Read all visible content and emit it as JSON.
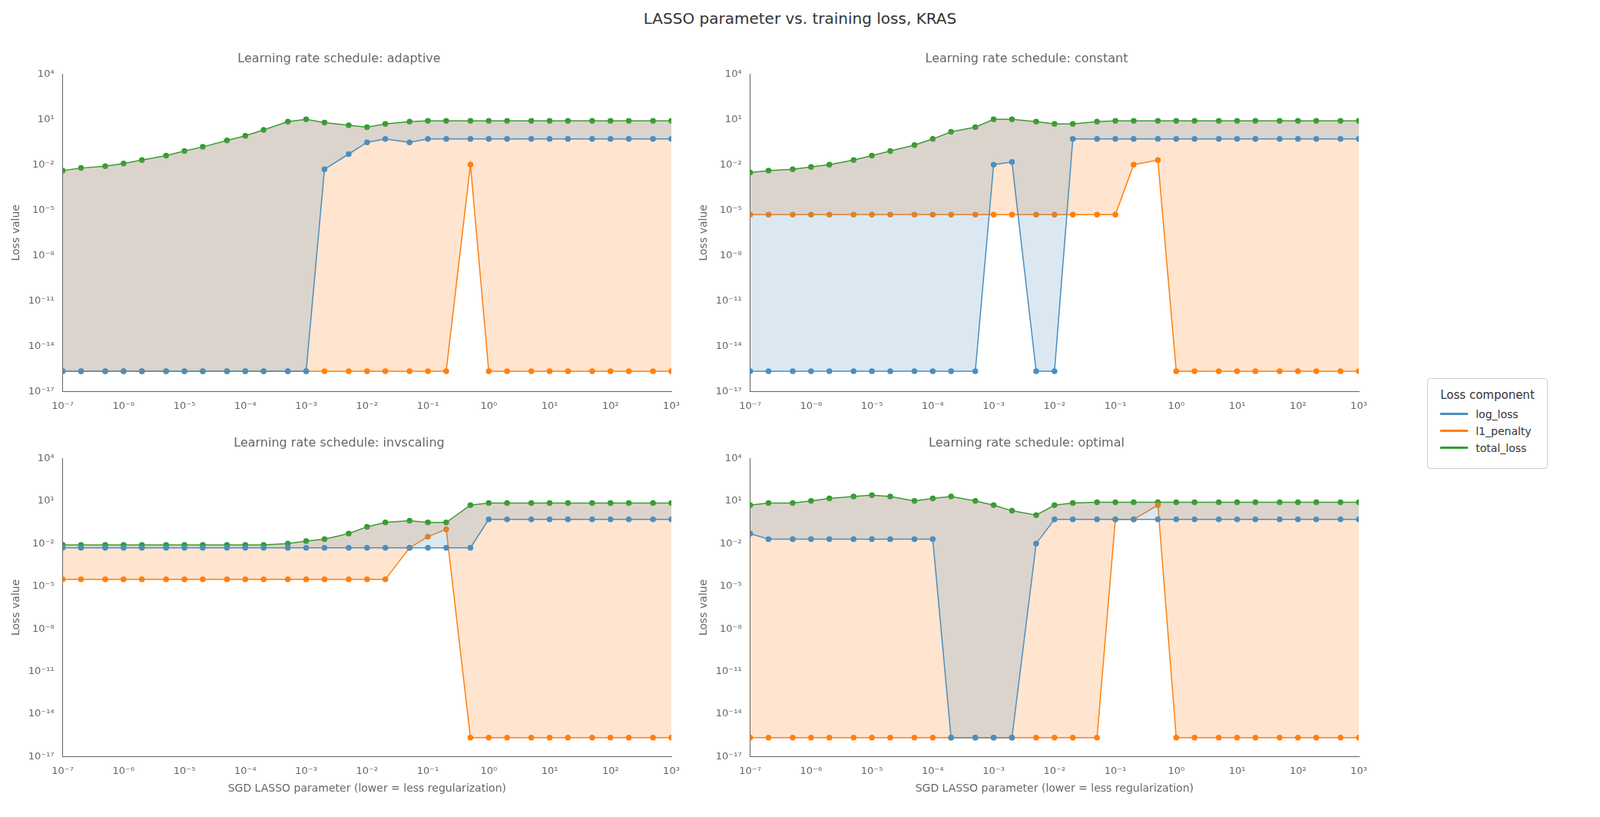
{
  "title": "LASSO parameter vs. training loss, KRAS",
  "legend_title": "Loss component",
  "legend": "right",
  "chart_data": [
    {
      "type": "line",
      "title": "Learning rate schedule: adaptive",
      "ylabel": "Loss value",
      "x": [
        1e-07,
        2e-07,
        5e-07,
        1e-06,
        2e-06,
        5e-06,
        1e-05,
        2e-05,
        5e-05,
        0.0001,
        0.0002,
        0.0005,
        0.001,
        0.002,
        0.005,
        0.01,
        0.02,
        0.05,
        0.1,
        0.2,
        0.5,
        1,
        2,
        5,
        10,
        20,
        50,
        100,
        200,
        500,
        1000
      ],
      "series": [
        {
          "name": "log_loss",
          "color": "#4C8EBF",
          "marker": "o",
          "line_style": "solid",
          "values": [
            2.22e-16,
            2.22e-16,
            2.22e-16,
            2.22e-16,
            2.22e-16,
            2.22e-16,
            2.22e-16,
            2.22e-16,
            2.22e-16,
            2.22e-16,
            2.22e-16,
            2.22e-16,
            2.22e-16,
            0.005,
            0.05,
            0.3,
            0.5,
            0.3,
            0.5,
            0.5,
            0.5,
            0.5,
            0.5,
            0.5,
            0.5,
            0.5,
            0.5,
            0.5,
            0.5,
            0.5,
            0.5
          ]
        },
        {
          "name": "l1_penalty",
          "color": "#FF7F0E",
          "marker": "o",
          "line_style": "solid",
          "values": [
            2.22e-16,
            2.22e-16,
            2.22e-16,
            2.22e-16,
            2.22e-16,
            2.22e-16,
            2.22e-16,
            2.22e-16,
            2.22e-16,
            2.22e-16,
            2.22e-16,
            2.22e-16,
            2.22e-16,
            2.22e-16,
            2.22e-16,
            2.22e-16,
            2.22e-16,
            2.22e-16,
            2.22e-16,
            2.22e-16,
            0.01,
            2.22e-16,
            2.22e-16,
            2.22e-16,
            2.22e-16,
            2.22e-16,
            2.22e-16,
            2.22e-16,
            2.22e-16,
            2.22e-16,
            2.22e-16
          ]
        },
        {
          "name": "total_loss",
          "color": "#2CA02C",
          "marker": "o",
          "line_style": "solid",
          "values": [
            0.004,
            0.006,
            0.008,
            0.012,
            0.02,
            0.04,
            0.08,
            0.15,
            0.4,
            0.8,
            2,
            7,
            10,
            6,
            4,
            3,
            5,
            7,
            8,
            8,
            8,
            8,
            8,
            8,
            8,
            8,
            8,
            8,
            8,
            8,
            8
          ]
        }
      ],
      "xlim": [
        1e-07,
        1000
      ],
      "ylim": [
        1e-17,
        10000
      ],
      "xticks": [
        {
          "value": 1e-07,
          "label": "10⁻⁷"
        },
        {
          "value": 1e-06,
          "label": "10⁻⁶"
        },
        {
          "value": 1e-05,
          "label": "10⁻⁵"
        },
        {
          "value": 0.0001,
          "label": "10⁻⁴"
        },
        {
          "value": 0.001,
          "label": "10⁻³"
        },
        {
          "value": 0.01,
          "label": "10⁻²"
        },
        {
          "value": 0.1,
          "label": "10⁻¹"
        },
        {
          "value": 1,
          "label": "10⁰"
        },
        {
          "value": 10,
          "label": "10¹"
        },
        {
          "value": 100,
          "label": "10²"
        },
        {
          "value": 1000,
          "label": "10³"
        }
      ],
      "yticks": [
        {
          "value": 1e-17,
          "label": "10⁻¹⁷"
        },
        {
          "value": 1e-14,
          "label": "10⁻¹⁴"
        },
        {
          "value": 1e-11,
          "label": "10⁻¹¹"
        },
        {
          "value": 1e-08,
          "label": "10⁻⁸"
        },
        {
          "value": 1e-05,
          "label": "10⁻⁵"
        },
        {
          "value": 0.01,
          "label": "10⁻²"
        },
        {
          "value": 10,
          "label": "10¹"
        },
        {
          "value": 10000,
          "label": "10⁴"
        }
      ],
      "log": true,
      "grid": false
    },
    {
      "type": "line",
      "title": "Learning rate schedule: constant",
      "ylabel": "Loss value",
      "x": [
        1e-07,
        2e-07,
        5e-07,
        1e-06,
        2e-06,
        5e-06,
        1e-05,
        2e-05,
        5e-05,
        0.0001,
        0.0002,
        0.0005,
        0.001,
        0.002,
        0.005,
        0.01,
        0.02,
        0.05,
        0.1,
        0.2,
        0.5,
        1,
        2,
        5,
        10,
        20,
        50,
        100,
        200,
        500,
        1000
      ],
      "series": [
        {
          "name": "log_loss",
          "color": "#4C8EBF",
          "marker": "o",
          "line_style": "solid",
          "values": [
            2.22e-16,
            2.22e-16,
            2.22e-16,
            2.22e-16,
            2.22e-16,
            2.22e-16,
            2.22e-16,
            2.22e-16,
            2.22e-16,
            2.22e-16,
            2.22e-16,
            2.22e-16,
            0.01,
            0.015,
            2.22e-16,
            2.22e-16,
            0.5,
            0.5,
            0.5,
            0.5,
            0.5,
            0.5,
            0.5,
            0.5,
            0.5,
            0.5,
            0.5,
            0.5,
            0.5,
            0.5,
            0.5
          ]
        },
        {
          "name": "l1_penalty",
          "color": "#FF7F0E",
          "marker": "o",
          "line_style": "solid",
          "values": [
            5e-06,
            5e-06,
            5e-06,
            5e-06,
            5e-06,
            5e-06,
            5e-06,
            5e-06,
            5e-06,
            5e-06,
            5e-06,
            5e-06,
            5e-06,
            5e-06,
            5e-06,
            5e-06,
            5e-06,
            5e-06,
            5e-06,
            0.01,
            0.02,
            2.22e-16,
            2.22e-16,
            2.22e-16,
            2.22e-16,
            2.22e-16,
            2.22e-16,
            2.22e-16,
            2.22e-16,
            2.22e-16,
            2.22e-16
          ]
        },
        {
          "name": "total_loss",
          "color": "#2CA02C",
          "marker": "o",
          "line_style": "solid",
          "values": [
            0.003,
            0.004,
            0.005,
            0.007,
            0.01,
            0.02,
            0.04,
            0.08,
            0.2,
            0.5,
            1.5,
            3,
            10,
            10,
            7,
            5,
            5,
            7,
            8,
            8,
            8,
            8,
            8,
            8,
            8,
            8,
            8,
            8,
            8,
            8,
            8
          ]
        }
      ],
      "xlim": [
        1e-07,
        1000
      ],
      "ylim": [
        1e-17,
        10000
      ],
      "xticks": [
        {
          "value": 1e-07,
          "label": "10⁻⁷"
        },
        {
          "value": 1e-06,
          "label": "10⁻⁶"
        },
        {
          "value": 1e-05,
          "label": "10⁻⁵"
        },
        {
          "value": 0.0001,
          "label": "10⁻⁴"
        },
        {
          "value": 0.001,
          "label": "10⁻³"
        },
        {
          "value": 0.01,
          "label": "10⁻²"
        },
        {
          "value": 0.1,
          "label": "10⁻¹"
        },
        {
          "value": 1,
          "label": "10⁰"
        },
        {
          "value": 10,
          "label": "10¹"
        },
        {
          "value": 100,
          "label": "10²"
        },
        {
          "value": 1000,
          "label": "10³"
        }
      ],
      "yticks": [
        {
          "value": 1e-17,
          "label": "10⁻¹⁷"
        },
        {
          "value": 1e-14,
          "label": "10⁻¹⁴"
        },
        {
          "value": 1e-11,
          "label": "10⁻¹¹"
        },
        {
          "value": 1e-08,
          "label": "10⁻⁸"
        },
        {
          "value": 1e-05,
          "label": "10⁻⁵"
        },
        {
          "value": 0.01,
          "label": "10⁻²"
        },
        {
          "value": 10,
          "label": "10¹"
        },
        {
          "value": 10000,
          "label": "10⁴"
        }
      ],
      "log": true,
      "grid": false
    },
    {
      "type": "line",
      "title": "Learning rate schedule: invscaling",
      "ylabel": "Loss value",
      "xlabel": "SGD LASSO parameter (lower = less regularization)",
      "x": [
        1e-07,
        2e-07,
        5e-07,
        1e-06,
        2e-06,
        5e-06,
        1e-05,
        2e-05,
        5e-05,
        0.0001,
        0.0002,
        0.0005,
        0.001,
        0.002,
        0.005,
        0.01,
        0.02,
        0.05,
        0.1,
        0.2,
        0.5,
        1,
        2,
        5,
        10,
        20,
        50,
        100,
        200,
        500,
        1000
      ],
      "series": [
        {
          "name": "log_loss",
          "color": "#4C8EBF",
          "marker": "o",
          "line_style": "solid",
          "values": [
            0.005,
            0.005,
            0.005,
            0.005,
            0.005,
            0.005,
            0.005,
            0.005,
            0.005,
            0.005,
            0.005,
            0.005,
            0.005,
            0.005,
            0.005,
            0.005,
            0.005,
            0.005,
            0.005,
            0.005,
            0.005,
            0.5,
            0.5,
            0.5,
            0.5,
            0.5,
            0.5,
            0.5,
            0.5,
            0.5,
            0.5
          ]
        },
        {
          "name": "l1_penalty",
          "color": "#FF7F0E",
          "marker": "o",
          "line_style": "solid",
          "values": [
            3e-05,
            3e-05,
            3e-05,
            3e-05,
            3e-05,
            3e-05,
            3e-05,
            3e-05,
            3e-05,
            3e-05,
            3e-05,
            3e-05,
            3e-05,
            3e-05,
            3e-05,
            3e-05,
            3e-05,
            0.005,
            0.03,
            0.1,
            2.22e-16,
            2.22e-16,
            2.22e-16,
            2.22e-16,
            2.22e-16,
            2.22e-16,
            2.22e-16,
            2.22e-16,
            2.22e-16,
            2.22e-16,
            2.22e-16
          ]
        },
        {
          "name": "total_loss",
          "color": "#2CA02C",
          "marker": "o",
          "line_style": "solid",
          "values": [
            0.008,
            0.008,
            0.008,
            0.008,
            0.008,
            0.008,
            0.008,
            0.008,
            0.008,
            0.008,
            0.008,
            0.01,
            0.015,
            0.02,
            0.05,
            0.15,
            0.3,
            0.4,
            0.3,
            0.3,
            5,
            7,
            7,
            7,
            7,
            7,
            7,
            7,
            7,
            7,
            7
          ]
        }
      ],
      "xlim": [
        1e-07,
        1000
      ],
      "ylim": [
        1e-17,
        10000
      ],
      "xticks": [
        {
          "value": 1e-07,
          "label": "10⁻⁷"
        },
        {
          "value": 1e-06,
          "label": "10⁻⁶"
        },
        {
          "value": 1e-05,
          "label": "10⁻⁵"
        },
        {
          "value": 0.0001,
          "label": "10⁻⁴"
        },
        {
          "value": 0.001,
          "label": "10⁻³"
        },
        {
          "value": 0.01,
          "label": "10⁻²"
        },
        {
          "value": 0.1,
          "label": "10⁻¹"
        },
        {
          "value": 1,
          "label": "10⁰"
        },
        {
          "value": 10,
          "label": "10¹"
        },
        {
          "value": 100,
          "label": "10²"
        },
        {
          "value": 1000,
          "label": "10³"
        }
      ],
      "yticks": [
        {
          "value": 1e-17,
          "label": "10⁻¹⁷"
        },
        {
          "value": 1e-14,
          "label": "10⁻¹⁴"
        },
        {
          "value": 1e-11,
          "label": "10⁻¹¹"
        },
        {
          "value": 1e-08,
          "label": "10⁻⁸"
        },
        {
          "value": 1e-05,
          "label": "10⁻⁵"
        },
        {
          "value": 0.01,
          "label": "10⁻²"
        },
        {
          "value": 10,
          "label": "10¹"
        },
        {
          "value": 10000,
          "label": "10⁴"
        }
      ],
      "log": true,
      "grid": false
    },
    {
      "type": "line",
      "title": "Learning rate schedule: optimal",
      "ylabel": "Loss value",
      "xlabel": "SGD LASSO parameter (lower = less regularization)",
      "x": [
        1e-07,
        2e-07,
        5e-07,
        1e-06,
        2e-06,
        5e-06,
        1e-05,
        2e-05,
        5e-05,
        0.0001,
        0.0002,
        0.0005,
        0.001,
        0.002,
        0.005,
        0.01,
        0.02,
        0.05,
        0.1,
        0.2,
        0.5,
        1,
        2,
        5,
        10,
        20,
        50,
        100,
        200,
        500,
        1000
      ],
      "series": [
        {
          "name": "log_loss",
          "color": "#4C8EBF",
          "marker": "o",
          "line_style": "solid",
          "values": [
            0.05,
            0.02,
            0.02,
            0.02,
            0.02,
            0.02,
            0.02,
            0.02,
            0.02,
            0.02,
            2.22e-16,
            2.22e-16,
            2.22e-16,
            2.22e-16,
            0.01,
            0.5,
            0.5,
            0.5,
            0.5,
            0.5,
            0.5,
            0.5,
            0.5,
            0.5,
            0.5,
            0.5,
            0.5,
            0.5,
            0.5,
            0.5,
            0.5
          ]
        },
        {
          "name": "l1_penalty",
          "color": "#FF7F0E",
          "marker": "o",
          "line_style": "solid",
          "values": [
            2.22e-16,
            2.22e-16,
            2.22e-16,
            2.22e-16,
            2.22e-16,
            2.22e-16,
            2.22e-16,
            2.22e-16,
            2.22e-16,
            2.22e-16,
            2.22e-16,
            2.22e-16,
            2.22e-16,
            2.22e-16,
            2.22e-16,
            2.22e-16,
            2.22e-16,
            2.22e-16,
            0.5,
            0.5,
            5,
            2.22e-16,
            2.22e-16,
            2.22e-16,
            2.22e-16,
            2.22e-16,
            2.22e-16,
            2.22e-16,
            2.22e-16,
            2.22e-16,
            2.22e-16
          ]
        },
        {
          "name": "total_loss",
          "color": "#2CA02C",
          "marker": "o",
          "line_style": "solid",
          "values": [
            5,
            7,
            7,
            10,
            15,
            20,
            25,
            20,
            10,
            15,
            20,
            10,
            5,
            2,
            1,
            5,
            7,
            8,
            8,
            8,
            8,
            8,
            8,
            8,
            8,
            8,
            8,
            8,
            8,
            8,
            8
          ]
        }
      ],
      "xlim": [
        1e-07,
        1000
      ],
      "ylim": [
        1e-17,
        10000
      ],
      "xticks": [
        {
          "value": 1e-07,
          "label": "10⁻⁷"
        },
        {
          "value": 1e-06,
          "label": "10⁻⁶"
        },
        {
          "value": 1e-05,
          "label": "10⁻⁵"
        },
        {
          "value": 0.0001,
          "label": "10⁻⁴"
        },
        {
          "value": 0.001,
          "label": "10⁻³"
        },
        {
          "value": 0.01,
          "label": "10⁻²"
        },
        {
          "value": 0.1,
          "label": "10⁻¹"
        },
        {
          "value": 1,
          "label": "10⁰"
        },
        {
          "value": 10,
          "label": "10¹"
        },
        {
          "value": 100,
          "label": "10²"
        },
        {
          "value": 1000,
          "label": "10³"
        }
      ],
      "yticks": [
        {
          "value": 1e-17,
          "label": "10⁻¹⁷"
        },
        {
          "value": 1e-14,
          "label": "10⁻¹⁴"
        },
        {
          "value": 1e-11,
          "label": "10⁻¹¹"
        },
        {
          "value": 1e-08,
          "label": "10⁻⁸"
        },
        {
          "value": 1e-05,
          "label": "10⁻⁵"
        },
        {
          "value": 0.01,
          "label": "10⁻²"
        },
        {
          "value": 10,
          "label": "10¹"
        },
        {
          "value": 10000,
          "label": "10⁴"
        }
      ],
      "log": true,
      "grid": false
    }
  ]
}
